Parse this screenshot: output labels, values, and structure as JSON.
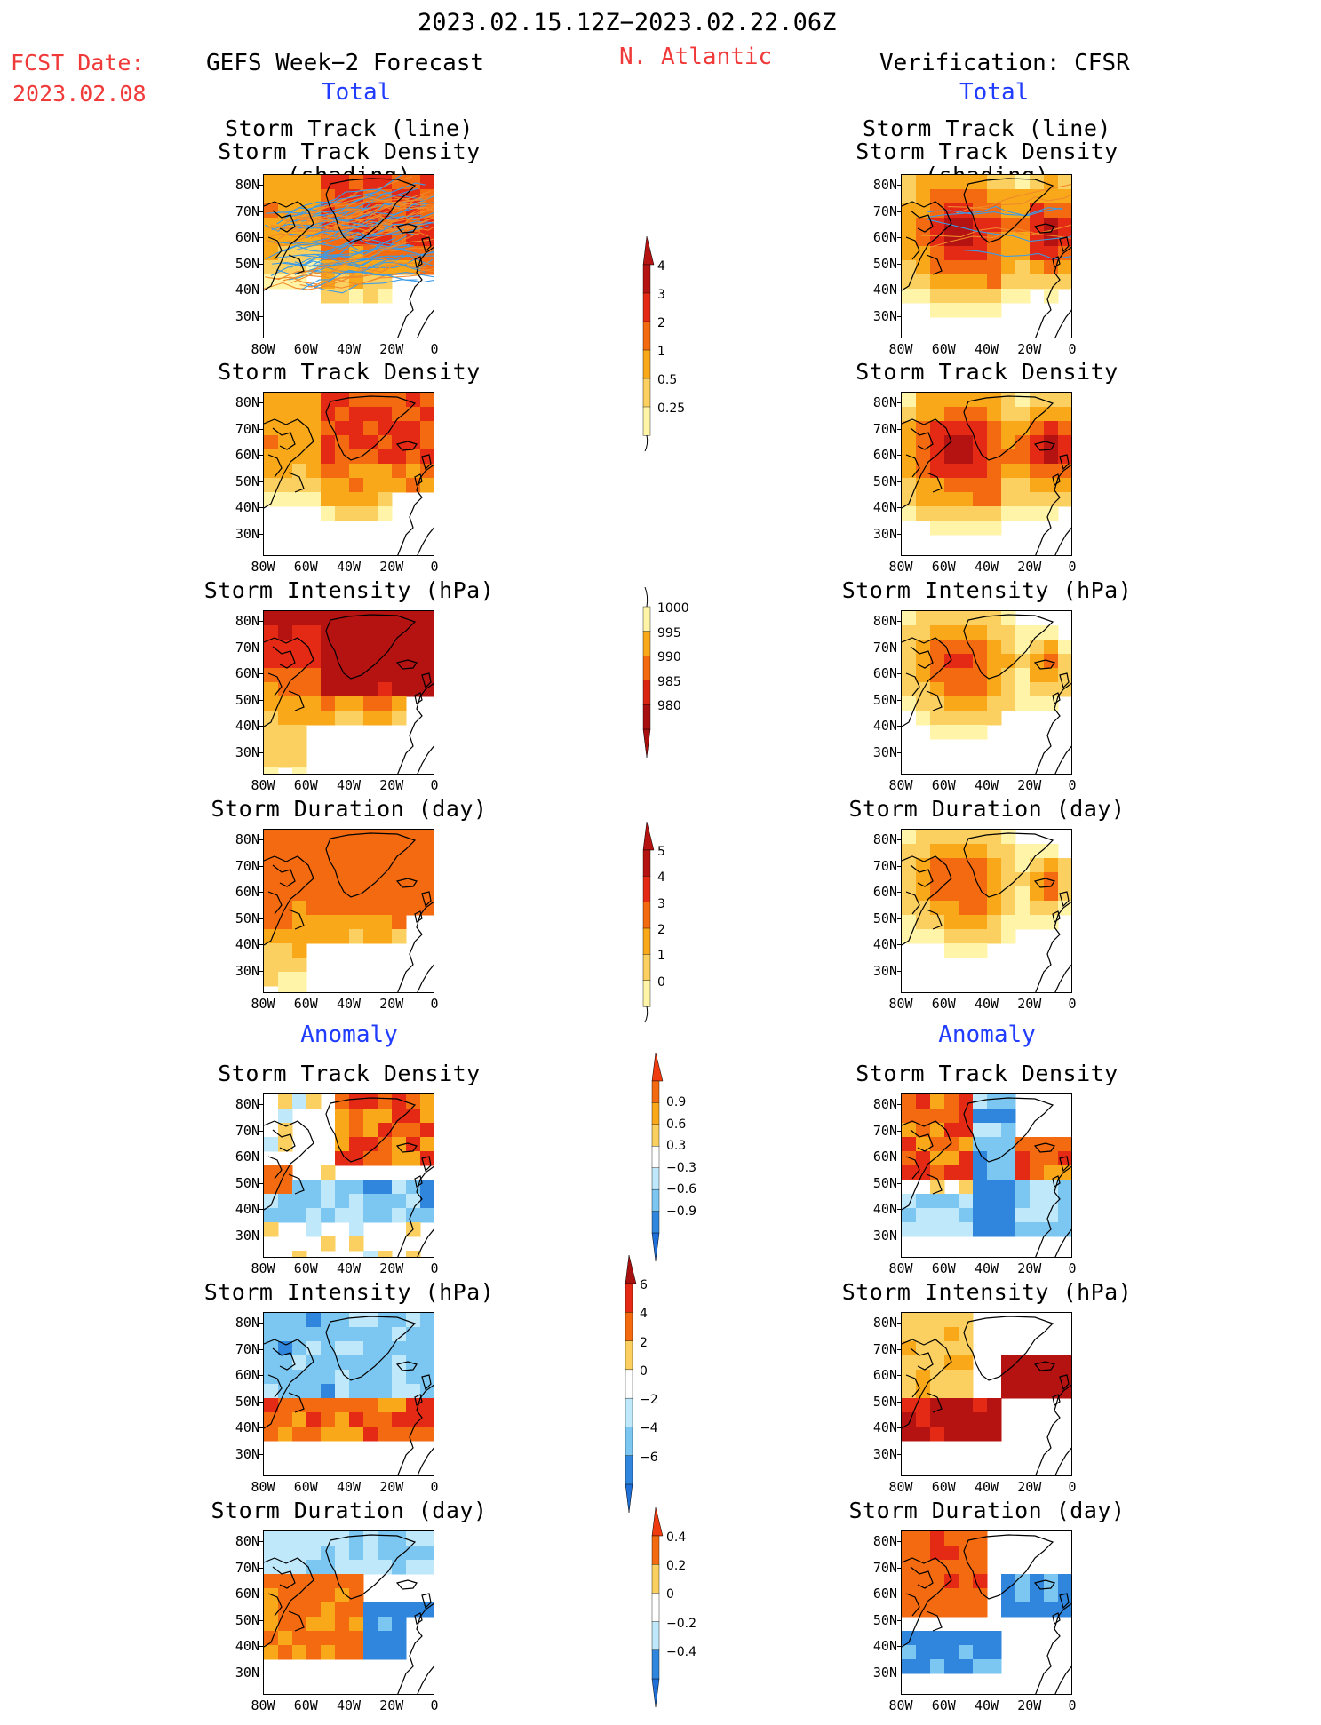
{
  "header": {
    "date_range": "2023.02.15.12Z−2023.02.22.06Z",
    "region": "N. Atlantic",
    "fcst_label": "FCST Date:",
    "fcst_date": "2023.02.08",
    "left_title": "GEFS Week−2 Forecast",
    "right_title": "Verification: CFSR",
    "left_total": "Total",
    "right_total": "Total"
  },
  "sections": {
    "anomaly_left": "Anomaly",
    "anomaly_right": "Anomaly"
  },
  "axes": {
    "y_ticks": [
      "80N",
      "70N",
      "60N",
      "50N",
      "40N",
      "30N"
    ],
    "x_ticks": [
      "80W",
      "60W",
      "40W",
      "20W",
      "0"
    ]
  },
  "panels": {
    "left": [
      {
        "title1": "Storm Track (line)",
        "title2": "Storm Track Density (shading)"
      },
      {
        "title1": "Storm Track Density",
        "title2": ""
      },
      {
        "title1": "Storm Intensity (hPa)",
        "title2": ""
      },
      {
        "title1": "Storm Duration (day)",
        "title2": ""
      },
      {
        "title1": "Storm Track Density",
        "title2": ""
      },
      {
        "title1": "Storm Intensity (hPa)",
        "title2": ""
      },
      {
        "title1": "Storm Duration (day)",
        "title2": ""
      }
    ],
    "right": [
      {
        "title1": "Storm Track (line)",
        "title2": "Storm Track Density (shading)"
      },
      {
        "title1": "Storm Track Density",
        "title2": ""
      },
      {
        "title1": "Storm Intensity (hPa)",
        "title2": ""
      },
      {
        "title1": "Storm Duration (day)",
        "title2": ""
      },
      {
        "title1": "Storm Track Density",
        "title2": ""
      },
      {
        "title1": "Storm Intensity (hPa)",
        "title2": ""
      },
      {
        "title1": "Storm Duration (day)",
        "title2": ""
      }
    ]
  },
  "colorbars": [
    {
      "labels": [
        "4",
        "3",
        "2",
        "1",
        "0.5",
        "0.25"
      ],
      "colors": [
        "#b51212",
        "#e42a14",
        "#f46a10",
        "#f9a81a",
        "#fbd060",
        "#fff4a8"
      ],
      "top_arrow": "#b51212",
      "bottom_arrow": "none"
    },
    {
      "labels": [
        "1000",
        "995",
        "990",
        "985",
        "980"
      ],
      "colors": [
        "#fff4a8",
        "#f9a81a",
        "#f46a10",
        "#d92510",
        "#a80f0f"
      ],
      "top_arrow": "none",
      "bottom_arrow": "#a80f0f"
    },
    {
      "labels": [
        "5",
        "4",
        "3",
        "2",
        "1",
        "0"
      ],
      "colors": [
        "#b51212",
        "#e42a14",
        "#f46a10",
        "#f9a81a",
        "#fbd060",
        "#fff4a8"
      ],
      "top_arrow": "#b51212",
      "bottom_arrow": "none"
    },
    {
      "labels": [
        "0.9",
        "0.6",
        "0.3",
        "−0.3",
        "−0.6",
        "−0.9"
      ],
      "colors": [
        "#f46a10",
        "#f9a81a",
        "#fbd060",
        "#ffffff",
        "#bfe8fb",
        "#7cc7f2",
        "#2f86dc"
      ],
      "top_arrow": "#f03a10",
      "bottom_arrow": "#1f6fd8"
    },
    {
      "labels": [
        "6",
        "4",
        "2",
        "0",
        "−2",
        "−4",
        "−6"
      ],
      "colors": [
        "#e42a14",
        "#f46a10",
        "#fbd060",
        "#ffffff",
        "#bfe8fb",
        "#7cc7f2",
        "#2f86dc"
      ],
      "top_arrow": "#a80f0f",
      "bottom_arrow": "#1f6fd8"
    },
    {
      "labels": [
        "0.4",
        "0.2",
        "0",
        "−0.2",
        "−0.4"
      ],
      "colors": [
        "#f46a10",
        "#fbd060",
        "#ffffff",
        "#bfe8fb",
        "#2f86dc"
      ],
      "top_arrow": "#f03a10",
      "bottom_arrow": "#1f6fd8"
    }
  ]
}
